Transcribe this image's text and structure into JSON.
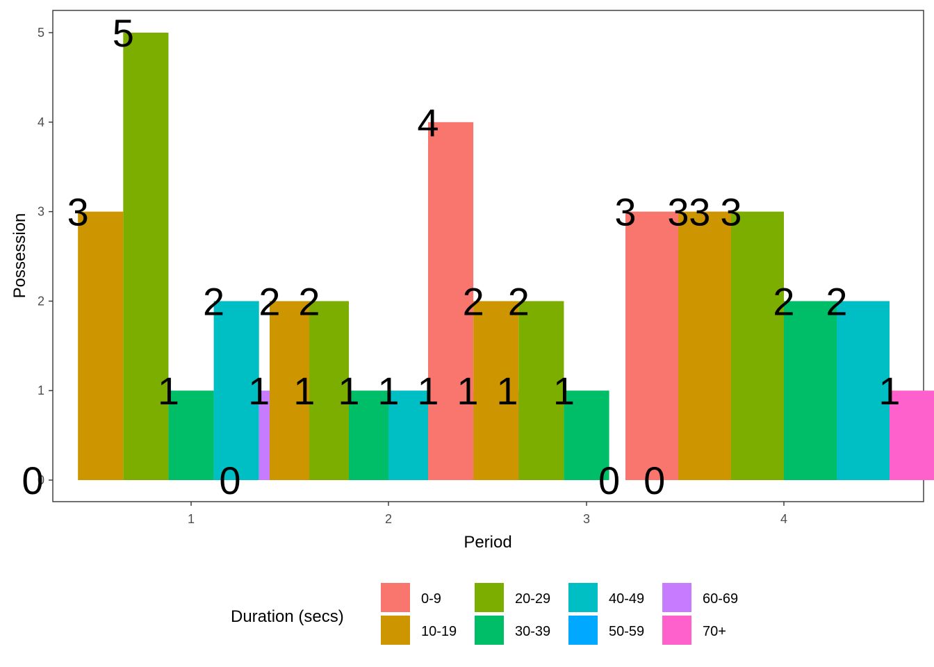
{
  "chart_data": {
    "type": "bar",
    "xlabel": "Period",
    "ylabel": "Possession",
    "categories": [
      "1",
      "2",
      "3",
      "4"
    ],
    "yticks": [
      "0",
      "1",
      "2",
      "3",
      "4",
      "5"
    ],
    "ylim": [
      0,
      5
    ],
    "grid": false,
    "legend": {
      "title": "Duration (secs)",
      "position": "bottom"
    },
    "series": [
      {
        "name": "0-9",
        "color": "#F8766D"
      },
      {
        "name": "10-19",
        "color": "#CD9600"
      },
      {
        "name": "20-29",
        "color": "#7CAE00"
      },
      {
        "name": "30-39",
        "color": "#00BE67"
      },
      {
        "name": "40-49",
        "color": "#00BFC4"
      },
      {
        "name": "50-59",
        "color": "#00A9FF"
      },
      {
        "name": "60-69",
        "color": "#C77CFF"
      },
      {
        "name": "70+",
        "color": "#FF61CC"
      }
    ],
    "groups": [
      {
        "period": "1",
        "bars": [
          {
            "series": "0-9",
            "value": 0
          },
          {
            "series": "10-19",
            "value": 3
          },
          {
            "series": "20-29",
            "value": 5
          },
          {
            "series": "30-39",
            "value": 1
          },
          {
            "series": "40-49",
            "value": 2
          },
          {
            "series": "60-69",
            "value": 1
          },
          {
            "series": "70+",
            "value": 1
          }
        ]
      },
      {
        "period": "2",
        "bars": [
          {
            "series": "0-9",
            "value": 0
          },
          {
            "series": "10-19",
            "value": 2
          },
          {
            "series": "20-29",
            "value": 2
          },
          {
            "series": "30-39",
            "value": 1
          },
          {
            "series": "40-49",
            "value": 1
          },
          {
            "series": "50-59",
            "value": 1
          },
          {
            "series": "60-69",
            "value": 1
          },
          {
            "series": "70+",
            "value": 1
          }
        ]
      },
      {
        "period": "3",
        "bars": [
          {
            "series": "0-9",
            "value": 4
          },
          {
            "series": "10-19",
            "value": 2
          },
          {
            "series": "20-29",
            "value": 2
          },
          {
            "series": "30-39",
            "value": 1
          },
          {
            "series": "40-49",
            "value": 0
          },
          {
            "series": "60-69",
            "value": 0
          },
          {
            "series": "70+",
            "value": 3
          }
        ]
      },
      {
        "period": "4",
        "bars": [
          {
            "series": "0-9",
            "value": 3
          },
          {
            "series": "10-19",
            "value": 3
          },
          {
            "series": "20-29",
            "value": 3
          },
          {
            "series": "30-39",
            "value": 2
          },
          {
            "series": "40-49",
            "value": 2
          },
          {
            "series": "70+",
            "value": 1
          }
        ]
      }
    ]
  }
}
